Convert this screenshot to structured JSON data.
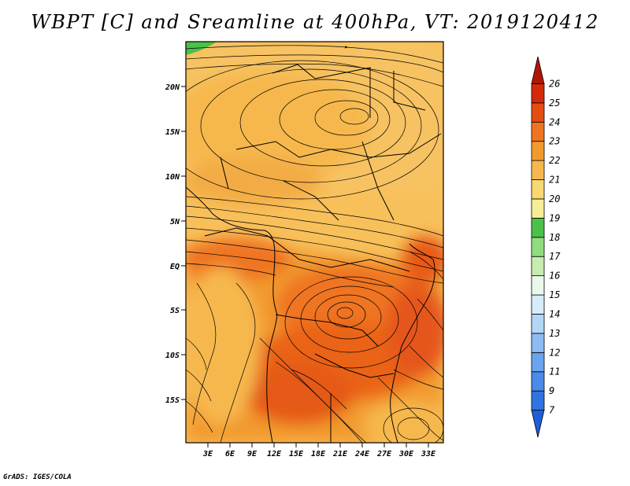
{
  "title": "WBPT [C] and Sreamline at 400hPa, VT: 2019120412",
  "credit": "GrADS: IGES/COLA",
  "map": {
    "region": "Central Africa",
    "lon_range": [
      0,
      35
    ],
    "lat_range": [
      -19.5,
      24.5
    ],
    "lon_ticks": [
      "3E",
      "6E",
      "9E",
      "12E",
      "15E",
      "18E",
      "21E",
      "24E",
      "27E",
      "30E",
      "33E"
    ],
    "lat_ticks": [
      "20N",
      "15N",
      "10N",
      "5N",
      "EQ",
      "5S",
      "10S",
      "15S"
    ],
    "features": [
      "anticyclonic circulation centred near 17N 24E",
      "cyclonic circulation centred near 6S 20E"
    ]
  },
  "colorbar": {
    "labels": [
      "7",
      "9",
      "11",
      "12",
      "13",
      "14",
      "15",
      "16",
      "17",
      "18",
      "19",
      "20",
      "21",
      "22",
      "23",
      "24",
      "25",
      "26"
    ],
    "colors": [
      "#1e5fd8",
      "#2f74e0",
      "#4a8ae8",
      "#6aa4ee",
      "#8cbcf2",
      "#b4d6f6",
      "#d6ecf8",
      "#eaf8ea",
      "#c6ecb0",
      "#92dc80",
      "#4cc048",
      "#f6ee96",
      "#f8d870",
      "#f6b84e",
      "#f29a2e",
      "#ef7420",
      "#e54c12",
      "#d42a0a",
      "#b01606"
    ]
  }
}
